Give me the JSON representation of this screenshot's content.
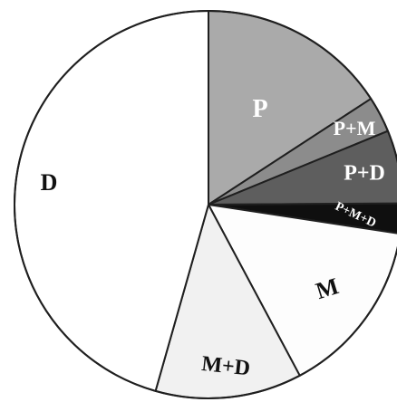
{
  "chart_data": {
    "type": "pie",
    "title": "",
    "start_angle_deg": 0,
    "direction": "clockwise",
    "slices": [
      {
        "label": "P",
        "value": 15.8,
        "color": "#aaaaaa",
        "label_color": "#ffffff"
      },
      {
        "label": "P+M",
        "value": 3.0,
        "color": "#8c8c8c",
        "label_color": "#ffffff"
      },
      {
        "label": "P+D",
        "value": 6.1,
        "color": "#5e5e5e",
        "label_color": "#ffffff"
      },
      {
        "label": "P+M+D",
        "value": 2.5,
        "color": "#0f0f0f",
        "label_color": "#ffffff"
      },
      {
        "label": "M",
        "value": 14.8,
        "color": "#fdfdfd",
        "label_color": "#111111"
      },
      {
        "label": "M+D",
        "value": 12.2,
        "color": "#f1f1f1",
        "label_color": "#111111"
      },
      {
        "label": "D",
        "value": 45.6,
        "color": "#ffffff",
        "label_color": "#111111"
      }
    ]
  }
}
